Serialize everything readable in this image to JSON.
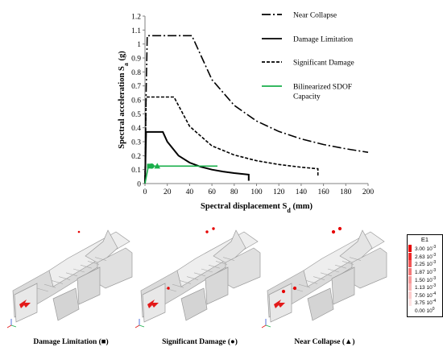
{
  "chart_data": {
    "type": "line",
    "xlabel": "Spectral displacement S",
    "xlabel_sub": "d",
    "xlabel_unit": " (mm)",
    "ylabel": "Spectral acceleration S",
    "ylabel_sub": "a",
    "ylabel_unit": " (g)",
    "xlim": [
      0,
      200
    ],
    "ylim": [
      0,
      1.2
    ],
    "xticks": [
      0,
      20,
      40,
      60,
      80,
      100,
      120,
      140,
      160,
      180,
      200
    ],
    "yticks": [
      0,
      0.1,
      0.2,
      0.3,
      0.4,
      0.5,
      0.6,
      0.7,
      0.8,
      0.9,
      1,
      1.1,
      1.2
    ],
    "grid": false,
    "legend_position": "right",
    "series": [
      {
        "name": "Near Collapse",
        "style": "dash-dot",
        "color": "#000000",
        "points": [
          [
            0,
            0
          ],
          [
            1,
            0.64
          ],
          [
            2,
            1.06
          ],
          [
            42,
            1.06
          ],
          [
            60,
            0.745
          ],
          [
            80,
            0.56
          ],
          [
            100,
            0.448
          ],
          [
            120,
            0.373
          ],
          [
            140,
            0.32
          ],
          [
            160,
            0.28
          ],
          [
            180,
            0.249
          ],
          [
            200,
            0.224
          ]
        ]
      },
      {
        "name": "Damage Limitation",
        "style": "solid",
        "color": "#000000",
        "points": [
          [
            0,
            0
          ],
          [
            1,
            0.37
          ],
          [
            16,
            0.37
          ],
          [
            20,
            0.3
          ],
          [
            30,
            0.2
          ],
          [
            40,
            0.15
          ],
          [
            50,
            0.12
          ],
          [
            60,
            0.1
          ],
          [
            70,
            0.086
          ],
          [
            80,
            0.075
          ],
          [
            93,
            0.064
          ],
          [
            93,
            0.02
          ]
        ]
      },
      {
        "name": "Significant Damage",
        "style": "dashed",
        "color": "#000000",
        "points": [
          [
            0,
            0
          ],
          [
            1,
            0.62
          ],
          [
            26,
            0.62
          ],
          [
            40,
            0.41
          ],
          [
            60,
            0.27
          ],
          [
            80,
            0.205
          ],
          [
            100,
            0.164
          ],
          [
            120,
            0.137
          ],
          [
            140,
            0.117
          ],
          [
            155,
            0.106
          ],
          [
            155,
            0.055
          ]
        ]
      },
      {
        "name": "Bilinearized SDOF Capacity",
        "style": "solid",
        "color": "#1aaf4b",
        "points": [
          [
            0,
            0
          ],
          [
            3,
            0.125
          ],
          [
            65,
            0.125
          ]
        ]
      }
    ],
    "markers": [
      {
        "label": "Damage Limitation",
        "shape": "square",
        "x": 4,
        "y": 0.125
      },
      {
        "label": "Significant Damage",
        "shape": "circle",
        "x": 6,
        "y": 0.125
      },
      {
        "label": "Near Collapse",
        "shape": "triangle",
        "x": 11,
        "y": 0.125
      }
    ]
  },
  "legend": [
    {
      "label": "Near Collapse",
      "style": "dash-dot"
    },
    {
      "label": "Damage Limitation",
      "style": "solid"
    },
    {
      "label": "Significant Damage",
      "style": "dashed"
    },
    {
      "label": "Bilinearized SDOF Capacity",
      "style": "green",
      "line2": "Capacity"
    }
  ],
  "panels": [
    {
      "caption": "Damage Limitation (■)"
    },
    {
      "caption": "Significant Damage (●)"
    },
    {
      "caption": "Near Collapse (▲)"
    }
  ],
  "colorscale": {
    "title": "E1",
    "entries": [
      {
        "label": "3.00 10",
        "exp": "-3",
        "color": "#e60000"
      },
      {
        "label": "2.63 10",
        "exp": "-3",
        "color": "#ee2a2a"
      },
      {
        "label": "2.25 10",
        "exp": "-3",
        "color": "#f25656"
      },
      {
        "label": "1.87 10",
        "exp": "-3",
        "color": "#f57a7a"
      },
      {
        "label": "1.50 10",
        "exp": "-3",
        "color": "#f89a9a"
      },
      {
        "label": "1.13 10",
        "exp": "-3",
        "color": "#fab5b5"
      },
      {
        "label": "7.50 10",
        "exp": "-4",
        "color": "#fccccc"
      },
      {
        "label": "3.75 10",
        "exp": "-4",
        "color": "#fde2e2"
      },
      {
        "label": "0.00 10",
        "exp": "0",
        "color": "#ffffff"
      }
    ]
  },
  "colors": {
    "accent": "#1aaf4b",
    "damage": "#e60000",
    "building": "#e6e6e6"
  }
}
